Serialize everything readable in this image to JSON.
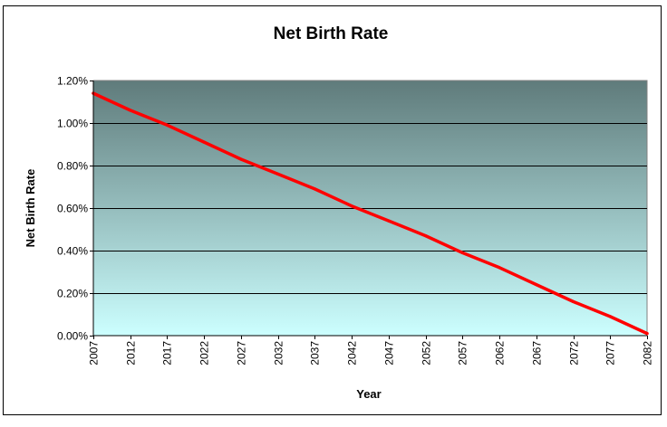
{
  "chart_data": {
    "type": "line",
    "title": "Net Birth Rate",
    "xlabel": "Year",
    "ylabel": "Net Birth Rate",
    "ylim": [
      0,
      1.2
    ],
    "y_ticks": [
      {
        "value": 0.0,
        "label": "0.00%"
      },
      {
        "value": 0.2,
        "label": "0.20%"
      },
      {
        "value": 0.4,
        "label": "0.40%"
      },
      {
        "value": 0.6,
        "label": "0.60%"
      },
      {
        "value": 0.8,
        "label": "0.80%"
      },
      {
        "value": 1.0,
        "label": "1.00%"
      },
      {
        "value": 1.2,
        "label": "1.20%"
      }
    ],
    "x_range": [
      2007,
      2082
    ],
    "x_ticks": [
      "2007",
      "2012",
      "2017",
      "2022",
      "2027",
      "2032",
      "2037",
      "2042",
      "2047",
      "2052",
      "2057",
      "2062",
      "2067",
      "2072",
      "2077",
      "2082"
    ],
    "grid": "horizontal",
    "legend": "none",
    "series": [
      {
        "color": "#ff0000",
        "x": [
          2007,
          2012,
          2017,
          2022,
          2027,
          2032,
          2037,
          2042,
          2047,
          2052,
          2057,
          2062,
          2067,
          2072,
          2077,
          2082
        ],
        "values": [
          1.14,
          1.06,
          0.99,
          0.91,
          0.83,
          0.76,
          0.69,
          0.61,
          0.54,
          0.47,
          0.39,
          0.32,
          0.24,
          0.16,
          0.09,
          0.01
        ]
      }
    ],
    "colors": {
      "plot_top": "#5f7b7b",
      "plot_bottom": "#ccffff",
      "gridline": "#000000",
      "line": "#ff0000"
    }
  }
}
